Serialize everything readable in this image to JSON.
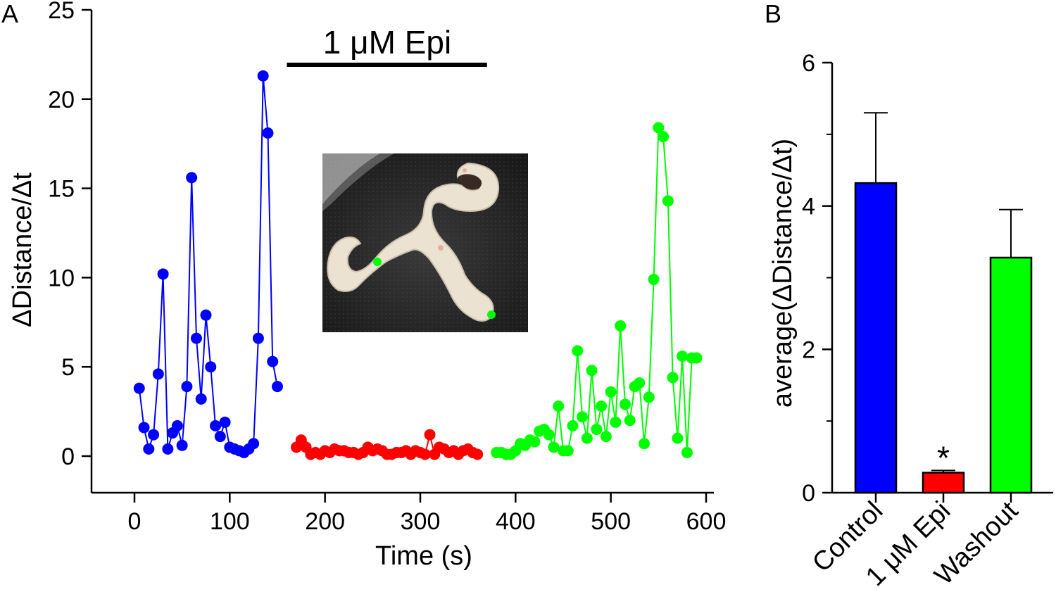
{
  "chart_data": [
    {
      "panel": "A",
      "type": "line",
      "xlabel": "Time (s)",
      "ylabel": "ΔDistance/Δt",
      "xlim": [
        -45,
        605
      ],
      "ylim": [
        -2,
        25
      ],
      "xticks": [
        "0",
        "100",
        "200",
        "300",
        "400",
        "500",
        "600"
      ],
      "yticks": [
        "0",
        "5",
        "10",
        "15",
        "20",
        "25"
      ],
      "annotation": "1 μM Epi",
      "annotation_range": [
        160,
        370
      ],
      "inset": "photograph of tissue sample with two green markers",
      "series": [
        {
          "name": "Control",
          "color": "#0000ff",
          "x": [
            5,
            10,
            15,
            20,
            25,
            30,
            35,
            40,
            45,
            50,
            55,
            60,
            65,
            70,
            75,
            80,
            85,
            90,
            95,
            100,
            105,
            110,
            115,
            120,
            125,
            130,
            135,
            140,
            145,
            150
          ],
          "y": [
            3.8,
            1.6,
            0.4,
            1.2,
            4.6,
            10.2,
            0.4,
            1.3,
            1.7,
            0.6,
            3.9,
            15.6,
            6.6,
            3.2,
            7.9,
            5.0,
            1.7,
            1.1,
            1.9,
            0.5,
            0.4,
            0.3,
            0.2,
            0.4,
            0.7,
            6.6,
            21.3,
            18.1,
            5.3,
            3.9
          ]
        },
        {
          "name": "1 μM Epi",
          "color": "#ff0000",
          "x": [
            170,
            175,
            180,
            185,
            190,
            195,
            200,
            205,
            210,
            215,
            220,
            225,
            230,
            235,
            240,
            245,
            250,
            255,
            260,
            265,
            270,
            275,
            280,
            285,
            290,
            295,
            300,
            305,
            310,
            315,
            320,
            325,
            330,
            335,
            340,
            345,
            350,
            355,
            360
          ],
          "y": [
            0.5,
            0.9,
            0.5,
            0.1,
            0.2,
            0.1,
            0.3,
            0.2,
            0.4,
            0.3,
            0.3,
            0.2,
            0.2,
            0.1,
            0.2,
            0.5,
            0.3,
            0.4,
            0.3,
            0.1,
            0.1,
            0.2,
            0.2,
            0.3,
            0.1,
            0.3,
            0.2,
            0.1,
            1.2,
            0.1,
            0.5,
            0.4,
            0.2,
            0.3,
            0.1,
            0.3,
            0.4,
            0.2,
            0.1
          ]
        },
        {
          "name": "Washout",
          "color": "#00ff00",
          "x": [
            380,
            385,
            390,
            395,
            400,
            405,
            410,
            415,
            420,
            425,
            430,
            435,
            440,
            445,
            450,
            455,
            460,
            465,
            470,
            475,
            480,
            485,
            490,
            495,
            500,
            505,
            510,
            515,
            520,
            525,
            530,
            535,
            540,
            545,
            550,
            555,
            560,
            565,
            570,
            575,
            580,
            585,
            590
          ],
          "y": [
            0.2,
            0.2,
            0.1,
            0.1,
            0.3,
            0.7,
            0.6,
            0.9,
            0.8,
            1.4,
            1.5,
            1.2,
            0.5,
            2.8,
            0.3,
            0.3,
            1.7,
            5.9,
            2.2,
            1.0,
            4.8,
            1.5,
            2.8,
            1.1,
            3.6,
            1.9,
            7.3,
            2.9,
            2.0,
            3.9,
            4.1,
            0.7,
            3.3,
            9.9,
            18.4,
            17.9,
            14.3,
            4.4,
            1.0,
            5.6,
            0.2,
            5.5,
            5.5
          ]
        }
      ]
    },
    {
      "panel": "B",
      "type": "bar",
      "categories": [
        "Control",
        "1 μM Epi",
        "Washout"
      ],
      "values": [
        4.32,
        0.28,
        3.28
      ],
      "errors": [
        0.98,
        0.03,
        0.67
      ],
      "colors": [
        "#0000ff",
        "#ff0000",
        "#00ff00"
      ],
      "ylabel": "average(ΔDistance/Δt)",
      "ylim": [
        0,
        6
      ],
      "yticks": [
        "0",
        "2",
        "4",
        "6"
      ],
      "significance": [
        "",
        "*",
        ""
      ]
    }
  ]
}
